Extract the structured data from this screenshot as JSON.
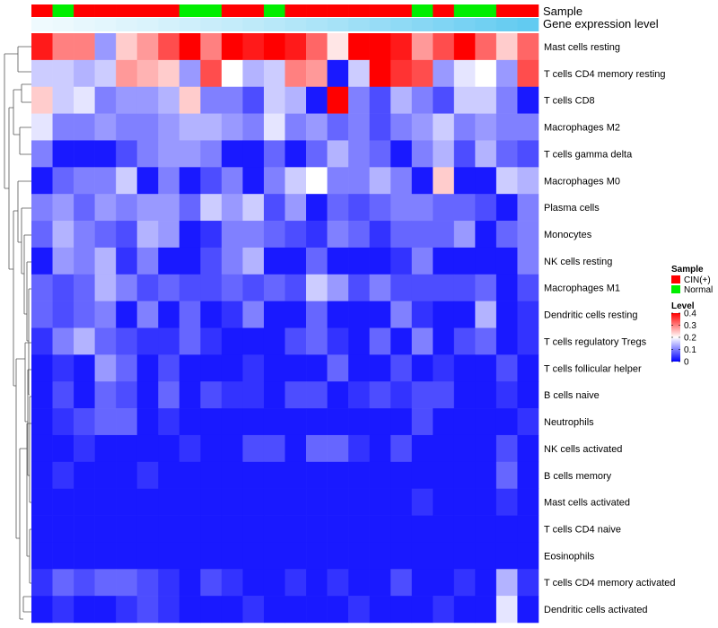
{
  "chart_data": {
    "type": "heatmap",
    "annotation_labels": {
      "sample": "Sample",
      "gene": "Gene expression level"
    },
    "samples": [
      "CIN(+)",
      "Normal",
      "CIN(+)",
      "CIN(+)",
      "CIN(+)",
      "CIN(+)",
      "CIN(+)",
      "Normal",
      "Normal",
      "CIN(+)",
      "CIN(+)",
      "Normal",
      "CIN(+)",
      "CIN(+)",
      "CIN(+)",
      "CIN(+)",
      "CIN(+)",
      "CIN(+)",
      "Normal",
      "CIN(+)",
      "Normal",
      "Normal",
      "CIN(+)",
      "CIN(+)"
    ],
    "gene_expression": [
      0.02,
      0.04,
      0.07,
      0.1,
      0.13,
      0.16,
      0.2,
      0.23,
      0.27,
      0.3,
      0.34,
      0.38,
      0.42,
      0.46,
      0.5,
      0.55,
      0.6,
      0.65,
      0.7,
      0.75,
      0.8,
      0.85,
      0.9,
      0.95
    ],
    "rows": [
      "Mast cells resting",
      "T cells CD4 memory resting",
      "T cells CD8",
      "Macrophages M2",
      "T cells gamma delta",
      "Macrophages M0",
      "Plasma cells",
      "Monocytes",
      "NK cells resting",
      "Macrophages M1",
      "Dendritic cells resting",
      "T cells regulatory  Tregs",
      "T cells follicular helper",
      "B cells naive",
      "Neutrophils",
      "NK cells activated",
      "B cells memory",
      "Mast cells activated",
      "T cells CD4 naive",
      "Eosinophils",
      "T cells CD4 memory activated",
      "Dendritic cells activated"
    ],
    "values": [
      [
        0.38,
        0.3,
        0.3,
        0.12,
        0.24,
        0.28,
        0.34,
        0.4,
        0.3,
        0.4,
        0.38,
        0.4,
        0.38,
        0.32,
        0.22,
        0.4,
        0.4,
        0.38,
        0.28,
        0.34,
        0.4,
        0.32,
        0.24,
        0.32
      ],
      [
        0.16,
        0.16,
        0.14,
        0.16,
        0.28,
        0.26,
        0.24,
        0.12,
        0.34,
        0.2,
        0.14,
        0.16,
        0.3,
        0.28,
        0.02,
        0.16,
        0.4,
        0.36,
        0.34,
        0.12,
        0.18,
        0.2,
        0.12,
        0.34
      ],
      [
        0.24,
        0.16,
        0.18,
        0.1,
        0.12,
        0.12,
        0.14,
        0.24,
        0.1,
        0.1,
        0.06,
        0.16,
        0.14,
        0.02,
        0.4,
        0.1,
        0.06,
        0.14,
        0.1,
        0.06,
        0.16,
        0.16,
        0.1,
        0.02
      ],
      [
        0.18,
        0.1,
        0.1,
        0.12,
        0.1,
        0.1,
        0.12,
        0.14,
        0.14,
        0.12,
        0.1,
        0.18,
        0.1,
        0.12,
        0.08,
        0.1,
        0.06,
        0.1,
        0.12,
        0.16,
        0.1,
        0.12,
        0.1,
        0.1
      ],
      [
        0.1,
        0.02,
        0.02,
        0.02,
        0.06,
        0.1,
        0.12,
        0.12,
        0.1,
        0.02,
        0.02,
        0.08,
        0.02,
        0.08,
        0.14,
        0.1,
        0.08,
        0.02,
        0.1,
        0.14,
        0.06,
        0.14,
        0.08,
        0.06
      ],
      [
        0.02,
        0.08,
        0.1,
        0.1,
        0.16,
        0.02,
        0.1,
        0.02,
        0.06,
        0.1,
        0.02,
        0.1,
        0.16,
        0.2,
        0.1,
        0.1,
        0.14,
        0.1,
        0.02,
        0.24,
        0.02,
        0.02,
        0.16,
        0.14
      ],
      [
        0.1,
        0.12,
        0.08,
        0.12,
        0.1,
        0.12,
        0.12,
        0.08,
        0.16,
        0.12,
        0.16,
        0.06,
        0.12,
        0.02,
        0.08,
        0.06,
        0.08,
        0.1,
        0.1,
        0.08,
        0.08,
        0.06,
        0.02,
        0.1
      ],
      [
        0.08,
        0.14,
        0.1,
        0.08,
        0.06,
        0.14,
        0.12,
        0.02,
        0.04,
        0.1,
        0.1,
        0.08,
        0.06,
        0.04,
        0.1,
        0.08,
        0.04,
        0.08,
        0.08,
        0.08,
        0.12,
        0.02,
        0.08,
        0.1
      ],
      [
        0.02,
        0.12,
        0.1,
        0.14,
        0.04,
        0.1,
        0.02,
        0.02,
        0.06,
        0.1,
        0.14,
        0.02,
        0.02,
        0.08,
        0.02,
        0.02,
        0.02,
        0.04,
        0.1,
        0.02,
        0.02,
        0.02,
        0.02,
        0.1
      ],
      [
        0.08,
        0.06,
        0.08,
        0.14,
        0.1,
        0.06,
        0.08,
        0.06,
        0.06,
        0.08,
        0.06,
        0.08,
        0.06,
        0.16,
        0.12,
        0.06,
        0.1,
        0.06,
        0.06,
        0.06,
        0.06,
        0.08,
        0.02,
        0.06
      ],
      [
        0.08,
        0.06,
        0.08,
        0.1,
        0.02,
        0.1,
        0.02,
        0.08,
        0.02,
        0.04,
        0.1,
        0.02,
        0.02,
        0.08,
        0.02,
        0.02,
        0.02,
        0.1,
        0.04,
        0.02,
        0.02,
        0.14,
        0.02,
        0.04
      ],
      [
        0.04,
        0.1,
        0.14,
        0.08,
        0.06,
        0.04,
        0.04,
        0.08,
        0.04,
        0.02,
        0.02,
        0.02,
        0.06,
        0.08,
        0.04,
        0.02,
        0.08,
        0.02,
        0.1,
        0.02,
        0.06,
        0.08,
        0.02,
        0.04
      ],
      [
        0.02,
        0.04,
        0.02,
        0.12,
        0.08,
        0.02,
        0.06,
        0.02,
        0.02,
        0.02,
        0.04,
        0.02,
        0.02,
        0.02,
        0.08,
        0.02,
        0.02,
        0.06,
        0.02,
        0.04,
        0.02,
        0.02,
        0.06,
        0.02
      ],
      [
        0.02,
        0.06,
        0.02,
        0.08,
        0.06,
        0.02,
        0.08,
        0.02,
        0.06,
        0.04,
        0.04,
        0.02,
        0.06,
        0.06,
        0.02,
        0.04,
        0.06,
        0.04,
        0.06,
        0.06,
        0.02,
        0.02,
        0.04,
        0.02
      ],
      [
        0.02,
        0.04,
        0.06,
        0.08,
        0.08,
        0.02,
        0.04,
        0.02,
        0.02,
        0.02,
        0.02,
        0.02,
        0.02,
        0.02,
        0.02,
        0.02,
        0.02,
        0.02,
        0.06,
        0.02,
        0.02,
        0.02,
        0.02,
        0.04
      ],
      [
        0.02,
        0.02,
        0.04,
        0.02,
        0.02,
        0.02,
        0.02,
        0.04,
        0.02,
        0.02,
        0.06,
        0.06,
        0.02,
        0.08,
        0.08,
        0.04,
        0.02,
        0.06,
        0.02,
        0.02,
        0.02,
        0.02,
        0.06,
        0.02
      ],
      [
        0.02,
        0.04,
        0.02,
        0.02,
        0.02,
        0.04,
        0.02,
        0.02,
        0.02,
        0.02,
        0.02,
        0.02,
        0.02,
        0.02,
        0.02,
        0.02,
        0.02,
        0.02,
        0.02,
        0.02,
        0.02,
        0.02,
        0.08,
        0.02
      ],
      [
        0.02,
        0.02,
        0.02,
        0.02,
        0.02,
        0.02,
        0.02,
        0.02,
        0.02,
        0.02,
        0.02,
        0.02,
        0.02,
        0.02,
        0.02,
        0.02,
        0.02,
        0.02,
        0.04,
        0.02,
        0.02,
        0.02,
        0.04,
        0.02
      ],
      [
        0.02,
        0.02,
        0.02,
        0.02,
        0.02,
        0.02,
        0.02,
        0.02,
        0.02,
        0.02,
        0.02,
        0.02,
        0.02,
        0.02,
        0.02,
        0.02,
        0.02,
        0.02,
        0.02,
        0.02,
        0.02,
        0.02,
        0.02,
        0.02
      ],
      [
        0.02,
        0.02,
        0.02,
        0.02,
        0.02,
        0.02,
        0.02,
        0.02,
        0.02,
        0.02,
        0.02,
        0.02,
        0.02,
        0.02,
        0.02,
        0.02,
        0.02,
        0.02,
        0.02,
        0.02,
        0.02,
        0.02,
        0.02,
        0.02
      ],
      [
        0.04,
        0.08,
        0.06,
        0.08,
        0.08,
        0.06,
        0.04,
        0.02,
        0.06,
        0.04,
        0.02,
        0.02,
        0.04,
        0.02,
        0.04,
        0.02,
        0.02,
        0.06,
        0.02,
        0.02,
        0.04,
        0.02,
        0.14,
        0.04
      ],
      [
        0.02,
        0.04,
        0.02,
        0.02,
        0.04,
        0.06,
        0.04,
        0.02,
        0.02,
        0.02,
        0.04,
        0.02,
        0.02,
        0.02,
        0.02,
        0.04,
        0.02,
        0.02,
        0.02,
        0.04,
        0.02,
        0.02,
        0.18,
        0.02
      ]
    ],
    "legend": {
      "sample_title": "Sample",
      "sample_entries": [
        {
          "label": "CIN(+)",
          "color": "#ff0000"
        },
        {
          "label": "Normal",
          "color": "#00ee00"
        }
      ],
      "level_title": "Level",
      "level_ticks": [
        "0.4",
        "0.3",
        "0.2",
        "0.1",
        "0"
      ],
      "level_range": [
        0,
        0.4
      ]
    },
    "colors": {
      "low": "#0000ff",
      "mid": "#ffffff",
      "high": "#ff0000",
      "annotation_low": "#f2fbfe",
      "annotation_high": "#5ac8f0"
    }
  }
}
